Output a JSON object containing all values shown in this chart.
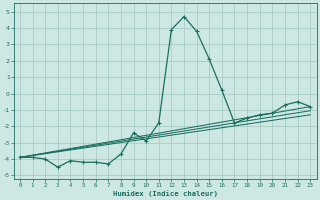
{
  "xlabel": "Humidex (Indice chaleur)",
  "xlim": [
    -0.5,
    23.5
  ],
  "ylim": [
    -5.2,
    5.5
  ],
  "xticks": [
    0,
    1,
    2,
    3,
    4,
    5,
    6,
    7,
    8,
    9,
    10,
    11,
    12,
    13,
    14,
    15,
    16,
    17,
    18,
    19,
    20,
    21,
    22,
    23
  ],
  "yticks": [
    -5,
    -4,
    -3,
    -2,
    -1,
    0,
    1,
    2,
    3,
    4,
    5
  ],
  "bg_color": "#cde8e2",
  "grid_color": "#aaccc6",
  "line_color": "#1a6e62",
  "line1_x": [
    0,
    1,
    2,
    3,
    4,
    5,
    6,
    7,
    8,
    9,
    10,
    11,
    12,
    13,
    14,
    15,
    16,
    17,
    18,
    19,
    20,
    21,
    22,
    23
  ],
  "line1_y": [
    -3.9,
    -3.9,
    -4.0,
    -4.5,
    -4.1,
    -4.2,
    -4.2,
    -4.3,
    -3.7,
    -2.4,
    -2.9,
    -1.8,
    3.9,
    4.7,
    3.8,
    2.1,
    0.2,
    -1.8,
    -1.5,
    -1.3,
    -1.2,
    -0.7,
    -0.5,
    -0.8
  ],
  "line2_x": [
    0,
    23
  ],
  "line2_y": [
    -3.9,
    -0.8
  ],
  "line3_x": [
    0,
    23
  ],
  "line3_y": [
    -3.9,
    -1.05
  ],
  "line4_x": [
    0,
    23
  ],
  "line4_y": [
    -3.9,
    -1.3
  ]
}
